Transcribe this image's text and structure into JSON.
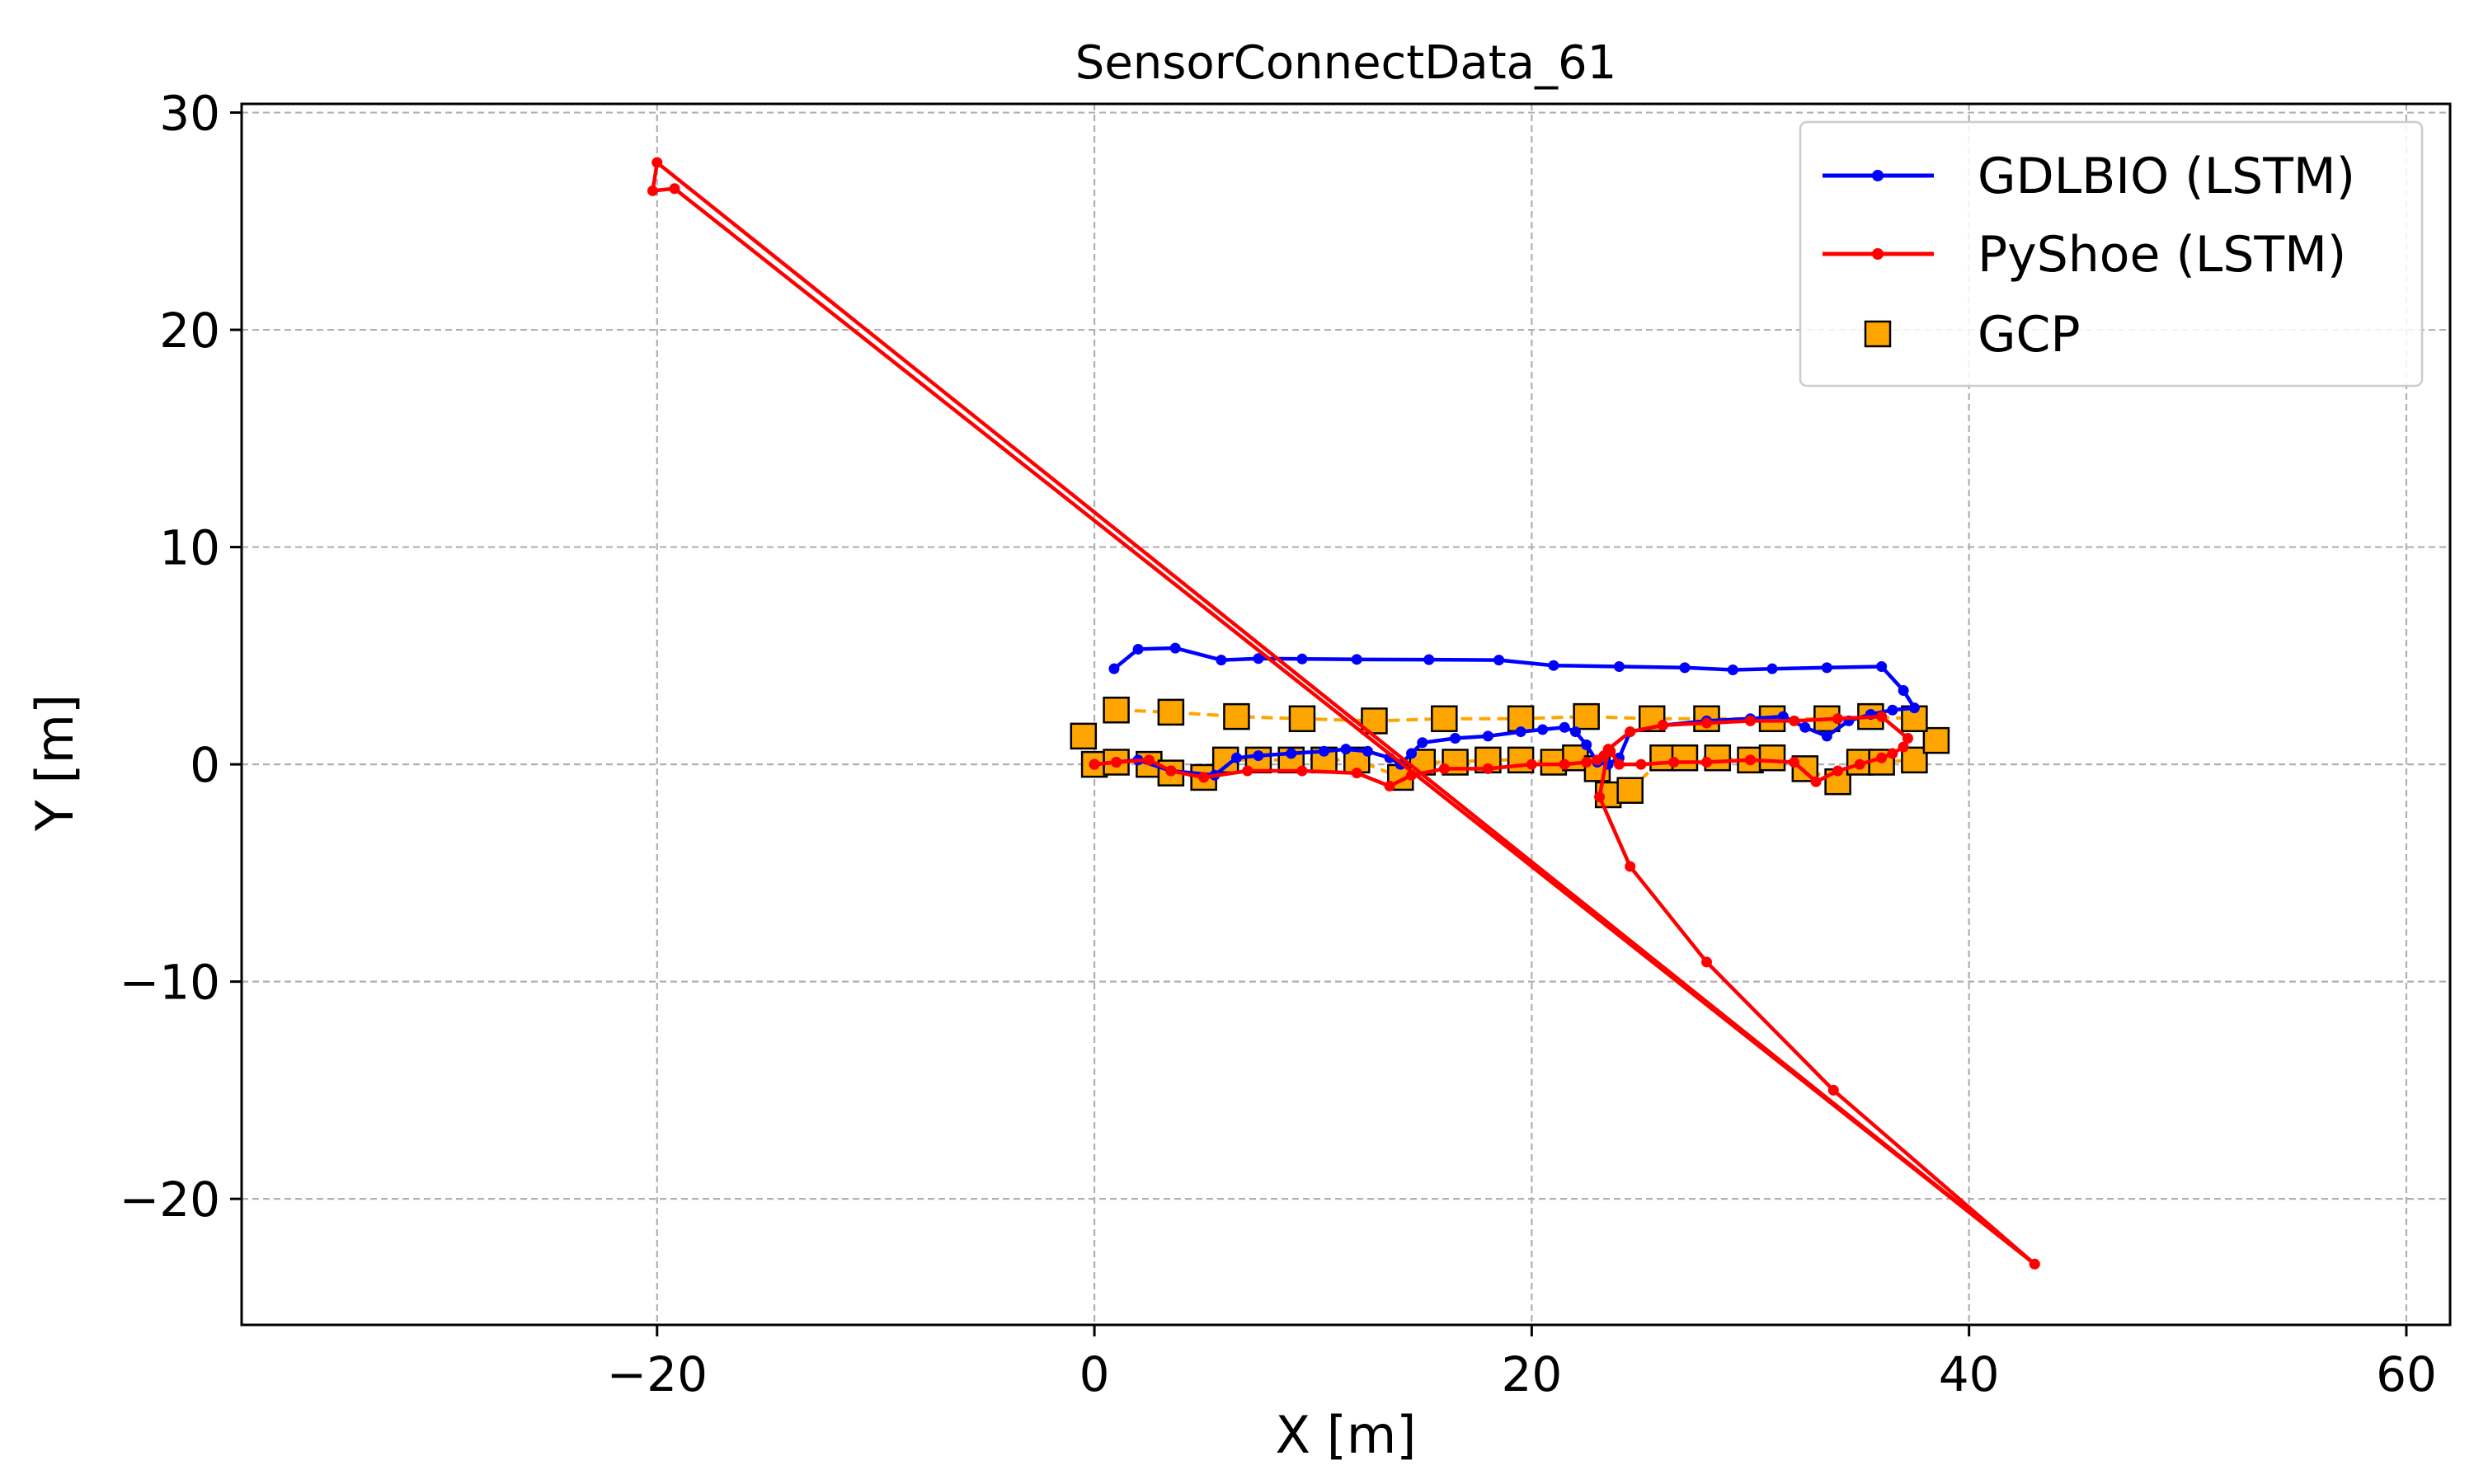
{
  "chart_data": {
    "type": "line",
    "title": "SensorConnectData_61",
    "xlabel": "X [m]",
    "ylabel": "Y [m]",
    "xlim": [
      -39,
      62
    ],
    "ylim": [
      -25.8,
      30.4
    ],
    "xticks": [
      -20,
      0,
      20,
      40,
      60
    ],
    "yticks": [
      -20,
      -10,
      0,
      10,
      20,
      30
    ],
    "xtick_labels": [
      "−20",
      "0",
      "20",
      "40",
      "60"
    ],
    "ytick_labels": [
      "−20",
      "−10",
      "0",
      "10",
      "20",
      "30"
    ],
    "grid": true,
    "legend_position": "top-right",
    "series": [
      {
        "name": "GDLBIO (LSTM)",
        "color": "#0000ff",
        "marker": "dot",
        "x": [
          0.0,
          1.0,
          2.0,
          3.5,
          5.5,
          6.5,
          7.5,
          9.0,
          10.5,
          11.5,
          12.5,
          13.5,
          14.0,
          14.5,
          15.0,
          16.5,
          18.0,
          19.5,
          20.5,
          21.5,
          22.0,
          22.5,
          23.0,
          23.5,
          24.0,
          24.5,
          26.0,
          28.0,
          30.0,
          31.5,
          32.5,
          33.5,
          34.5,
          35.5,
          36.5,
          37.5,
          37.0,
          36.0,
          33.5,
          31.0,
          29.2,
          27.0,
          24.0,
          21.0,
          18.5,
          15.3,
          12.0,
          9.5,
          7.5,
          5.8,
          3.7,
          2.0,
          0.9
        ],
        "y": [
          0.0,
          0.1,
          0.2,
          -0.3,
          -0.5,
          0.3,
          0.4,
          0.5,
          0.6,
          0.7,
          0.6,
          0.3,
          0.0,
          0.5,
          1.0,
          1.2,
          1.3,
          1.5,
          1.6,
          1.7,
          1.5,
          0.9,
          0.1,
          0.0,
          0.3,
          1.5,
          1.8,
          2.0,
          2.1,
          2.2,
          1.7,
          1.3,
          2.0,
          2.3,
          2.5,
          2.6,
          3.4,
          4.5,
          4.45,
          4.4,
          4.35,
          4.45,
          4.5,
          4.55,
          4.8,
          4.82,
          4.83,
          4.85,
          4.87,
          4.8,
          5.35,
          5.3,
          4.4
        ]
      },
      {
        "name": "PyShoe (LSTM)",
        "color": "#ff0000",
        "marker": "dot",
        "x": [
          0.0,
          1.0,
          2.5,
          3.5,
          5.0,
          7.0,
          9.5,
          12.0,
          13.5,
          14.5,
          16.0,
          18.0,
          20.0,
          21.5,
          22.5,
          23.0,
          23.3,
          23.6,
          24.0,
          25.0,
          26.5,
          28.0,
          30.0,
          32.0,
          33.0,
          34.0,
          35.0,
          36.0,
          36.5,
          37.0,
          37.2,
          36.0,
          34.0,
          32.0,
          30.0,
          28.0,
          26.0,
          24.5,
          23.5,
          23.1,
          24.5,
          28.0,
          33.8,
          43.0,
          -20.0,
          -20.2,
          -19.2,
          43.0
        ],
        "y": [
          0.0,
          0.1,
          0.2,
          -0.3,
          -0.6,
          -0.3,
          -0.3,
          -0.4,
          -1.0,
          -0.5,
          -0.2,
          -0.2,
          0.0,
          0.0,
          0.1,
          0.2,
          0.4,
          0.6,
          0.0,
          0.0,
          0.1,
          0.1,
          0.2,
          0.1,
          -0.8,
          -0.3,
          0.0,
          0.3,
          0.5,
          0.8,
          1.2,
          2.2,
          2.1,
          2.0,
          2.0,
          1.9,
          1.8,
          1.5,
          0.7,
          -1.5,
          -4.7,
          -9.1,
          -15.0,
          -23.0,
          27.7,
          26.4,
          26.5,
          -23.0
        ]
      },
      {
        "name": "GCP",
        "color": "#ffa500",
        "marker": "square",
        "x": [
          -0.5,
          0.0,
          1.0,
          2.5,
          3.5,
          5.0,
          6.0,
          7.5,
          9.0,
          10.5,
          12.0,
          14.0,
          15.0,
          16.5,
          18.0,
          19.5,
          21.0,
          22.0,
          23.0,
          23.5,
          24.5,
          26.0,
          27.0,
          28.5,
          30.0,
          31.0,
          32.5,
          34.0,
          35.0,
          36.0,
          37.5,
          38.5,
          37.5,
          35.5,
          33.5,
          31.0,
          28.0,
          25.5,
          22.5,
          19.5,
          16.0,
          12.8,
          9.5,
          6.5,
          3.5,
          1.0
        ],
        "y": [
          1.3,
          0.0,
          0.1,
          0.0,
          -0.4,
          -0.6,
          0.2,
          0.2,
          0.2,
          0.2,
          0.2,
          -0.6,
          0.1,
          0.1,
          0.2,
          0.2,
          0.1,
          0.3,
          -0.2,
          -1.4,
          -1.2,
          0.3,
          0.3,
          0.3,
          0.2,
          0.3,
          -0.2,
          -0.8,
          0.1,
          0.1,
          0.2,
          1.1,
          2.1,
          2.2,
          2.1,
          2.1,
          2.1,
          2.1,
          2.2,
          2.1,
          2.1,
          2.0,
          2.1,
          2.2,
          2.4,
          2.5
        ]
      }
    ]
  }
}
